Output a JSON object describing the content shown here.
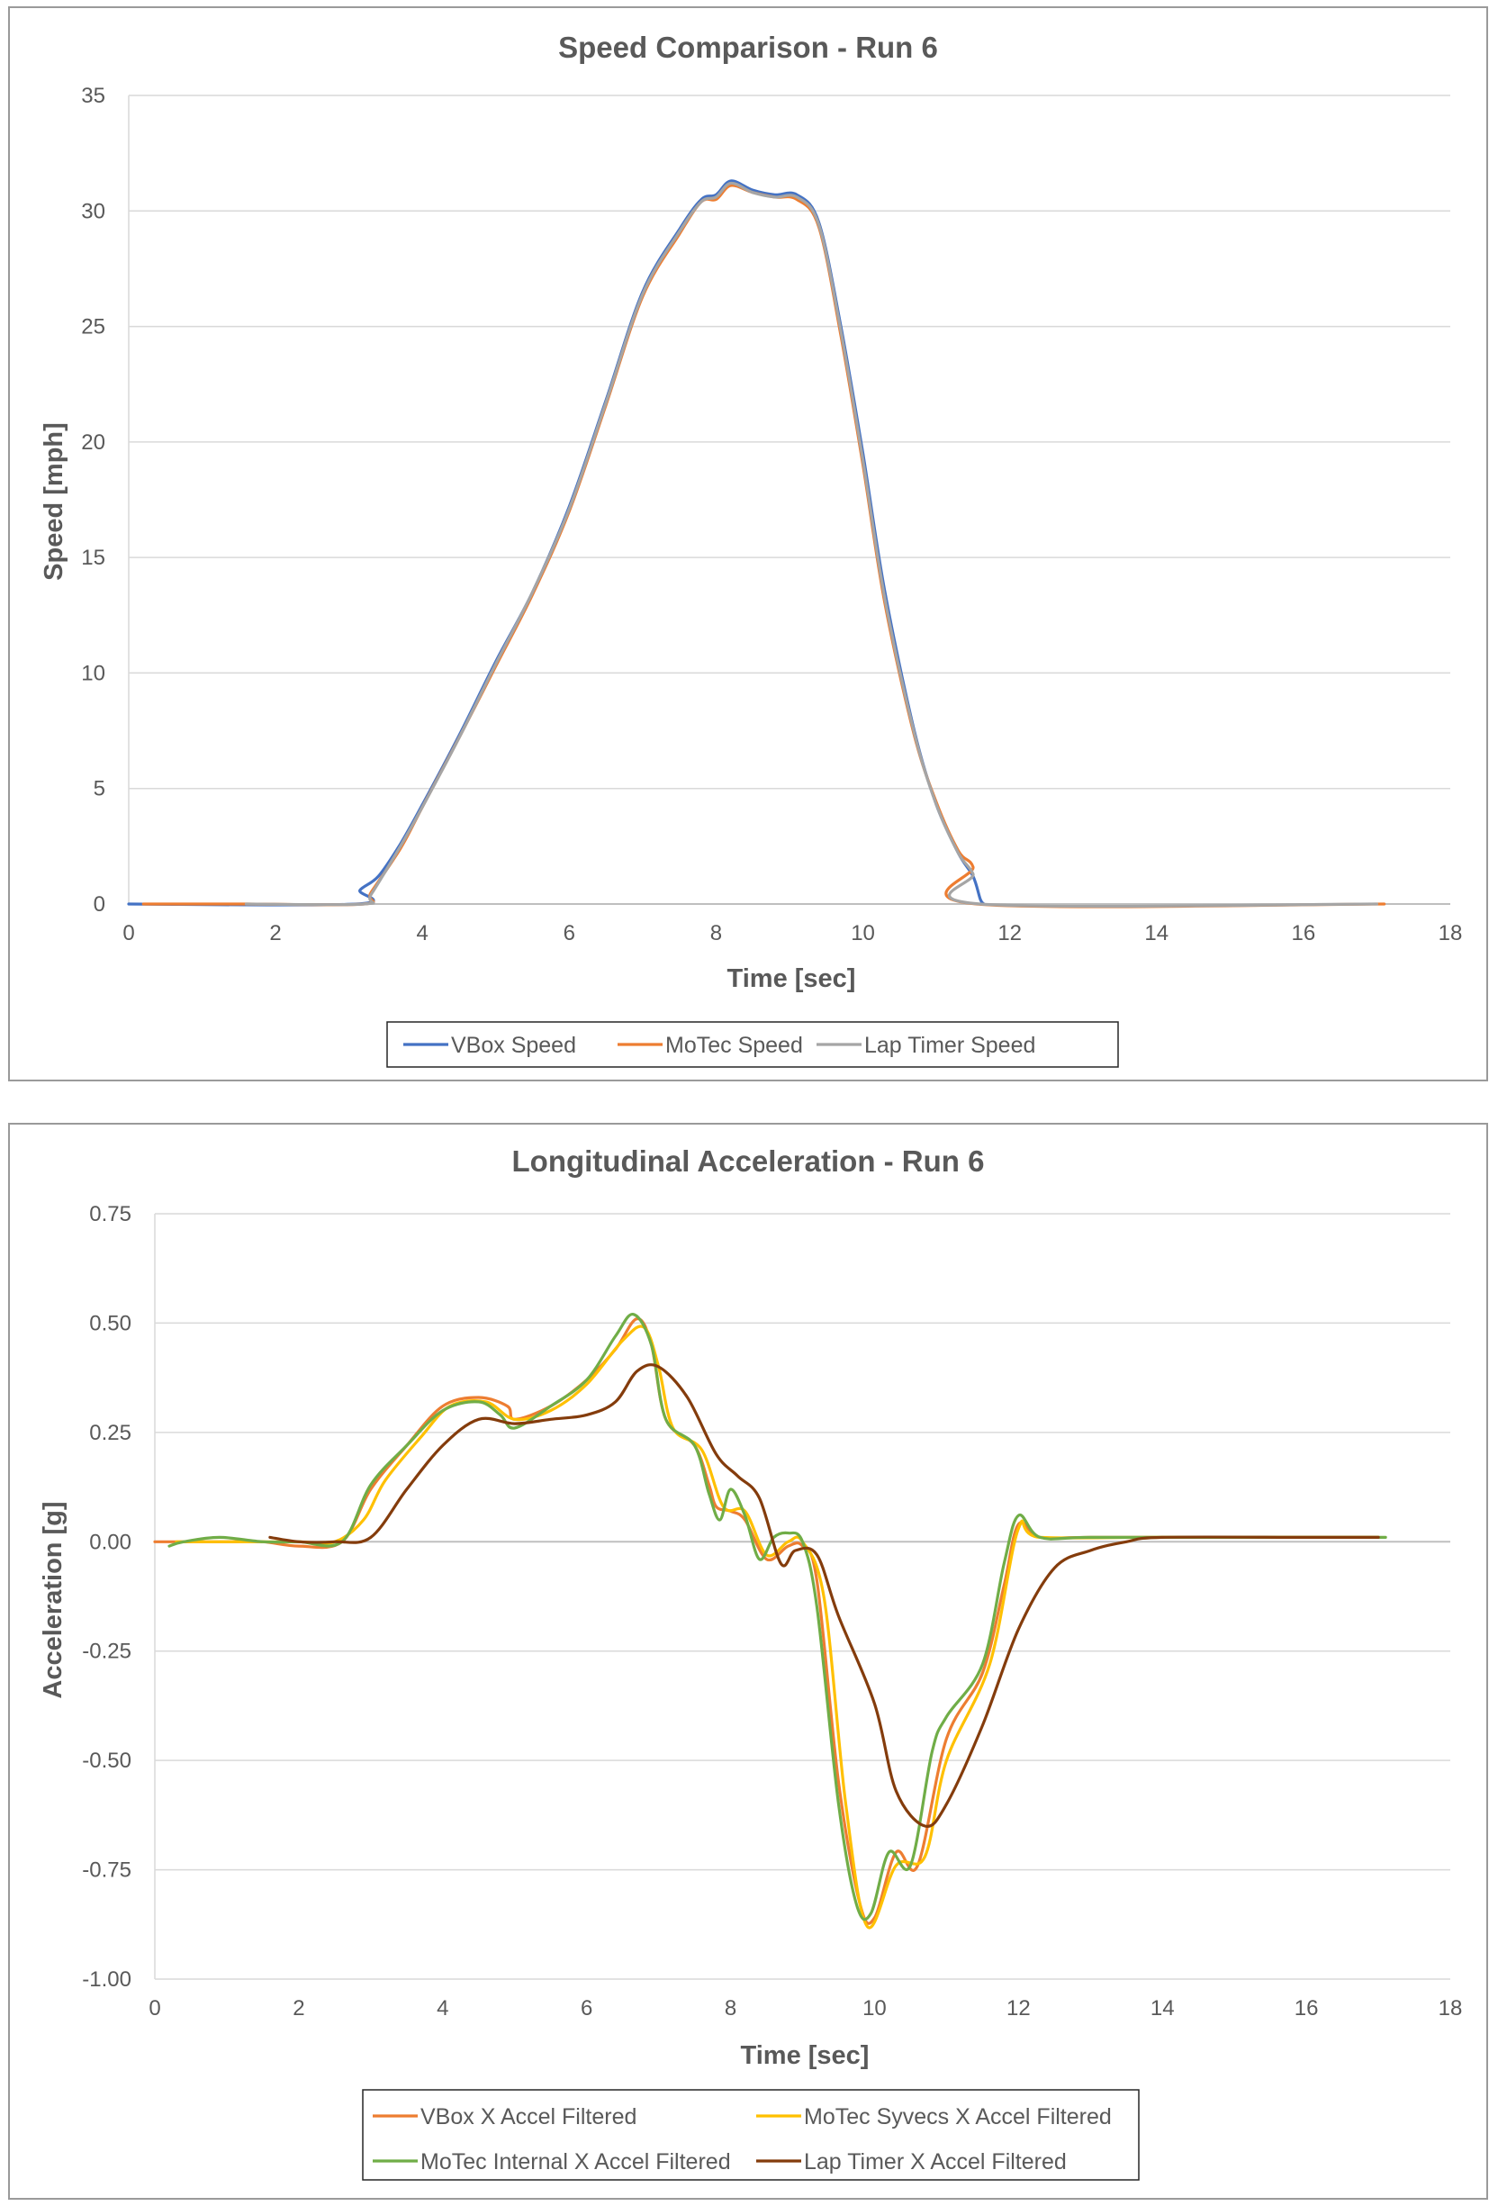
{
  "chart_data": [
    {
      "type": "line",
      "title": "Speed Comparison - Run 6",
      "xlabel": "Time [sec]",
      "ylabel": "Speed [mph]",
      "xlim": [
        0,
        18
      ],
      "ylim": [
        0,
        35
      ],
      "xticks": [
        "0",
        "2",
        "4",
        "6",
        "8",
        "10",
        "12",
        "14",
        "16",
        "18"
      ],
      "yticks": [
        "0",
        "5",
        "10",
        "15",
        "20",
        "25",
        "30",
        "35"
      ],
      "grid": "horizontal",
      "legend_position": "bottom",
      "series": [
        {
          "name": "VBox Speed",
          "color": "#4472C4",
          "points": [
            [
              0,
              0
            ],
            [
              3.1,
              0
            ],
            [
              3.15,
              0.6
            ],
            [
              3.4,
              1.2
            ],
            [
              3.7,
              2.6
            ],
            [
              4.0,
              4.3
            ],
            [
              4.5,
              7.3
            ],
            [
              5.0,
              10.5
            ],
            [
              5.5,
              13.5
            ],
            [
              6.0,
              17.2
            ],
            [
              6.5,
              21.8
            ],
            [
              7.0,
              26.5
            ],
            [
              7.5,
              29.2
            ],
            [
              7.8,
              30.5
            ],
            [
              8.0,
              30.7
            ],
            [
              8.2,
              31.3
            ],
            [
              8.5,
              30.9
            ],
            [
              8.8,
              30.7
            ],
            [
              9.1,
              30.7
            ],
            [
              9.4,
              29.5
            ],
            [
              9.7,
              25.0
            ],
            [
              10.0,
              19.5
            ],
            [
              10.3,
              13.5
            ],
            [
              10.7,
              7.5
            ],
            [
              11.0,
              4.3
            ],
            [
              11.3,
              2.2
            ],
            [
              11.5,
              1.2
            ],
            [
              11.6,
              0.2
            ],
            [
              11.65,
              0
            ]
          ]
        },
        {
          "name": "MoTec Speed",
          "color": "#ED7D31",
          "points": [
            [
              0.2,
              0
            ],
            [
              1.6,
              0
            ],
            [
              3.2,
              0
            ],
            [
              3.3,
              0.5
            ],
            [
              3.7,
              2.4
            ],
            [
              4.0,
              4.2
            ],
            [
              4.5,
              7.2
            ],
            [
              5.0,
              10.3
            ],
            [
              5.5,
              13.4
            ],
            [
              6.0,
              17.0
            ],
            [
              6.5,
              21.6
            ],
            [
              7.0,
              26.3
            ],
            [
              7.5,
              29.0
            ],
            [
              7.8,
              30.4
            ],
            [
              8.0,
              30.5
            ],
            [
              8.2,
              31.1
            ],
            [
              8.5,
              30.8
            ],
            [
              8.8,
              30.6
            ],
            [
              9.1,
              30.5
            ],
            [
              9.4,
              29.3
            ],
            [
              9.7,
              24.6
            ],
            [
              10.0,
              19.0
            ],
            [
              10.3,
              13.0
            ],
            [
              10.7,
              7.3
            ],
            [
              11.0,
              4.4
            ],
            [
              11.3,
              2.3
            ],
            [
              11.5,
              1.6
            ],
            [
              11.55,
              0
            ],
            [
              17.1,
              0
            ]
          ]
        },
        {
          "name": "Lap Timer Speed",
          "color": "#A5A5A5",
          "points": [
            [
              1.6,
              0
            ],
            [
              3.2,
              0
            ],
            [
              3.3,
              0.4
            ],
            [
              3.7,
              2.5
            ],
            [
              4.0,
              4.2
            ],
            [
              4.5,
              7.2
            ],
            [
              5.0,
              10.4
            ],
            [
              5.5,
              13.5
            ],
            [
              6.0,
              17.1
            ],
            [
              6.5,
              21.7
            ],
            [
              7.0,
              26.4
            ],
            [
              7.5,
              29.1
            ],
            [
              7.8,
              30.4
            ],
            [
              8.0,
              30.6
            ],
            [
              8.2,
              31.2
            ],
            [
              8.5,
              30.8
            ],
            [
              8.8,
              30.6
            ],
            [
              9.1,
              30.6
            ],
            [
              9.4,
              29.4
            ],
            [
              9.7,
              24.8
            ],
            [
              10.0,
              19.2
            ],
            [
              10.3,
              13.2
            ],
            [
              10.7,
              7.4
            ],
            [
              11.0,
              4.3
            ],
            [
              11.3,
              2.2
            ],
            [
              11.5,
              1.3
            ],
            [
              11.6,
              0
            ],
            [
              17.0,
              0
            ]
          ]
        }
      ]
    },
    {
      "type": "line",
      "title": "Longitudinal Acceleration - Run 6",
      "xlabel": "Time [sec]",
      "ylabel": "Acceleration [g]",
      "xlim": [
        0,
        18
      ],
      "ylim": [
        -1.0,
        0.75
      ],
      "xticks": [
        "0",
        "2",
        "4",
        "6",
        "8",
        "10",
        "12",
        "14",
        "16",
        "18"
      ],
      "yticks": [
        "-1.00",
        "-0.75",
        "-0.50",
        "-0.25",
        "0.00",
        "0.25",
        "0.50",
        "0.75"
      ],
      "grid": "horizontal",
      "legend_position": "bottom",
      "series": [
        {
          "name": "VBox X Accel Filtered",
          "color": "#ED7D31",
          "points": [
            [
              0,
              0
            ],
            [
              0.5,
              0.0
            ],
            [
              1.0,
              0.0
            ],
            [
              1.5,
              0.0
            ],
            [
              2.0,
              -0.01
            ],
            [
              2.6,
              0.0
            ],
            [
              3.0,
              0.12
            ],
            [
              3.5,
              0.22
            ],
            [
              4.0,
              0.31
            ],
            [
              4.5,
              0.33
            ],
            [
              4.9,
              0.31
            ],
            [
              5.0,
              0.28
            ],
            [
              5.5,
              0.31
            ],
            [
              6.0,
              0.37
            ],
            [
              6.4,
              0.44
            ],
            [
              6.7,
              0.51
            ],
            [
              6.9,
              0.45
            ],
            [
              7.1,
              0.28
            ],
            [
              7.5,
              0.22
            ],
            [
              7.7,
              0.13
            ],
            [
              7.8,
              0.08
            ],
            [
              8.0,
              0.07
            ],
            [
              8.2,
              0.05
            ],
            [
              8.5,
              -0.04
            ],
            [
              8.8,
              -0.01
            ],
            [
              9.0,
              -0.01
            ],
            [
              9.2,
              -0.09
            ],
            [
              9.5,
              -0.55
            ],
            [
              9.8,
              -0.83
            ],
            [
              10.0,
              -0.86
            ],
            [
              10.3,
              -0.71
            ],
            [
              10.6,
              -0.74
            ],
            [
              11.0,
              -0.45
            ],
            [
              11.5,
              -0.3
            ],
            [
              11.8,
              -0.1
            ],
            [
              12.0,
              0.04
            ],
            [
              12.3,
              0.01
            ],
            [
              13.0,
              0.01
            ],
            [
              15.0,
              0.01
            ],
            [
              17.0,
              0.01
            ]
          ]
        },
        {
          "name": "MoTec Syvecs X Accel Filtered",
          "color": "#FFC000",
          "points": [
            [
              0.3,
              0
            ],
            [
              0.8,
              0.0
            ],
            [
              1.5,
              0.0
            ],
            [
              2.0,
              0.0
            ],
            [
              2.5,
              0.0
            ],
            [
              2.9,
              0.05
            ],
            [
              3.2,
              0.14
            ],
            [
              3.7,
              0.24
            ],
            [
              4.1,
              0.31
            ],
            [
              4.6,
              0.32
            ],
            [
              5.0,
              0.28
            ],
            [
              5.5,
              0.3
            ],
            [
              6.0,
              0.36
            ],
            [
              6.5,
              0.46
            ],
            [
              6.8,
              0.49
            ],
            [
              7.0,
              0.4
            ],
            [
              7.2,
              0.26
            ],
            [
              7.6,
              0.21
            ],
            [
              7.9,
              0.08
            ],
            [
              8.2,
              0.07
            ],
            [
              8.5,
              -0.03
            ],
            [
              8.8,
              0.0
            ],
            [
              9.0,
              0.0
            ],
            [
              9.3,
              -0.13
            ],
            [
              9.6,
              -0.6
            ],
            [
              9.9,
              -0.88
            ],
            [
              10.3,
              -0.74
            ],
            [
              10.7,
              -0.72
            ],
            [
              11.0,
              -0.5
            ],
            [
              11.6,
              -0.28
            ],
            [
              12.0,
              0.03
            ],
            [
              12.3,
              0.01
            ],
            [
              14.0,
              0.01
            ],
            [
              17.0,
              0.01
            ]
          ]
        },
        {
          "name": "MoTec Internal X Accel Filtered",
          "color": "#70AD47",
          "points": [
            [
              0.2,
              -0.01
            ],
            [
              0.4,
              0.0
            ],
            [
              0.9,
              0.01
            ],
            [
              1.5,
              0.0
            ],
            [
              2.0,
              0.0
            ],
            [
              2.6,
              0.0
            ],
            [
              3.0,
              0.13
            ],
            [
              3.5,
              0.22
            ],
            [
              4.0,
              0.3
            ],
            [
              4.5,
              0.32
            ],
            [
              4.8,
              0.29
            ],
            [
              5.0,
              0.26
            ],
            [
              5.5,
              0.31
            ],
            [
              6.0,
              0.37
            ],
            [
              6.4,
              0.47
            ],
            [
              6.65,
              0.52
            ],
            [
              6.9,
              0.45
            ],
            [
              7.1,
              0.28
            ],
            [
              7.5,
              0.22
            ],
            [
              7.7,
              0.11
            ],
            [
              7.85,
              0.05
            ],
            [
              8.0,
              0.12
            ],
            [
              8.2,
              0.06
            ],
            [
              8.4,
              -0.04
            ],
            [
              8.6,
              0.01
            ],
            [
              8.8,
              0.02
            ],
            [
              9.0,
              0.0
            ],
            [
              9.2,
              -0.15
            ],
            [
              9.5,
              -0.6
            ],
            [
              9.75,
              -0.83
            ],
            [
              9.95,
              -0.85
            ],
            [
              10.2,
              -0.71
            ],
            [
              10.5,
              -0.74
            ],
            [
              10.8,
              -0.48
            ],
            [
              11.0,
              -0.4
            ],
            [
              11.5,
              -0.28
            ],
            [
              11.8,
              -0.05
            ],
            [
              12.0,
              0.06
            ],
            [
              12.3,
              0.01
            ],
            [
              13.0,
              0.01
            ],
            [
              15.0,
              0.01
            ],
            [
              17.1,
              0.01
            ]
          ]
        },
        {
          "name": "Lap Timer X Accel Filtered",
          "color": "#843C0C",
          "points": [
            [
              1.6,
              0.01
            ],
            [
              2.0,
              0.0
            ],
            [
              2.5,
              0.0
            ],
            [
              3.0,
              0.01
            ],
            [
              3.5,
              0.12
            ],
            [
              4.0,
              0.22
            ],
            [
              4.5,
              0.28
            ],
            [
              5.0,
              0.27
            ],
            [
              5.5,
              0.28
            ],
            [
              6.0,
              0.29
            ],
            [
              6.4,
              0.32
            ],
            [
              6.7,
              0.39
            ],
            [
              7.0,
              0.4
            ],
            [
              7.4,
              0.33
            ],
            [
              7.8,
              0.2
            ],
            [
              8.1,
              0.15
            ],
            [
              8.4,
              0.1
            ],
            [
              8.7,
              -0.05
            ],
            [
              8.9,
              -0.02
            ],
            [
              9.2,
              -0.03
            ],
            [
              9.5,
              -0.17
            ],
            [
              10.0,
              -0.37
            ],
            [
              10.3,
              -0.57
            ],
            [
              10.7,
              -0.65
            ],
            [
              11.0,
              -0.6
            ],
            [
              11.5,
              -0.42
            ],
            [
              12.0,
              -0.2
            ],
            [
              12.5,
              -0.06
            ],
            [
              13.0,
              -0.02
            ],
            [
              13.5,
              0.0
            ],
            [
              14.0,
              0.01
            ],
            [
              16.0,
              0.01
            ],
            [
              17.0,
              0.01
            ]
          ]
        }
      ]
    }
  ]
}
